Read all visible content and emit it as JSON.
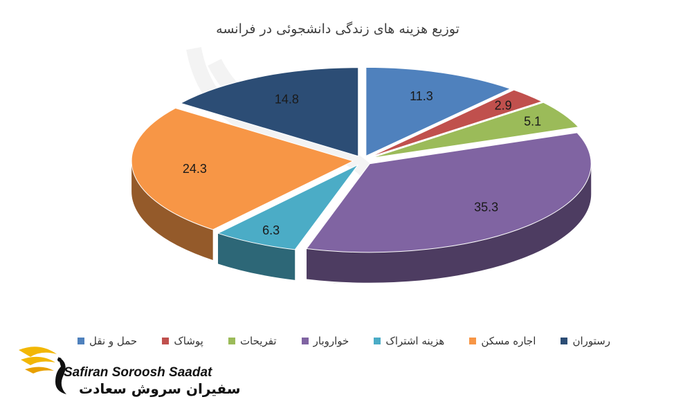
{
  "chart_data": {
    "type": "pie",
    "title": "توزیع هزینه های زندگی دانشجوئی در فرانسه",
    "categories": [
      "حمل و نقل",
      "پوشاک",
      "تفریحات",
      "خوارو‌بار",
      "هزینه اشتراک",
      "اجاره مسکن",
      "رستوران"
    ],
    "values": [
      11.3,
      2.9,
      5.1,
      35.3,
      6.3,
      24.3,
      14.8
    ],
    "value_labels": [
      "11.3",
      "2.9",
      "5.1",
      "35.3",
      "6.3",
      "24.3",
      "14.8"
    ],
    "colors": [
      "#4f81bd",
      "#c0504d",
      "#9bbb59",
      "#8064a2",
      "#4bacc6",
      "#f79646",
      "#2c4d75"
    ],
    "style": "3d-exploded",
    "legend_position": "bottom"
  },
  "logo": {
    "name_en": "Safiran Soroosh Saadat",
    "name_fa": "سفیران سروش سعادت",
    "accent": "#f2b705"
  }
}
